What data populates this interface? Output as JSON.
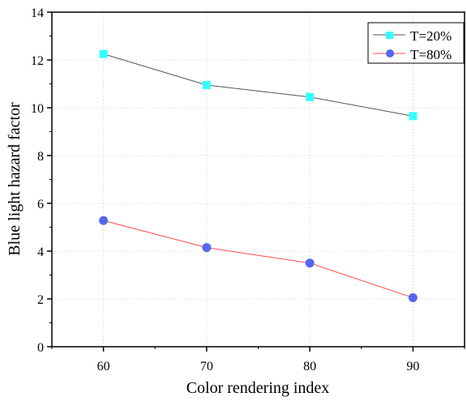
{
  "chart_data": {
    "type": "line",
    "title": "",
    "xlabel": "Color rendering index",
    "ylabel": "Blue light hazard factor",
    "x": [
      60,
      70,
      80,
      90
    ],
    "xticks": [
      "60",
      "70",
      "80",
      "90"
    ],
    "xlim": [
      55,
      95
    ],
    "yticks": [
      "0",
      "2",
      "4",
      "6",
      "8",
      "10",
      "12",
      "14"
    ],
    "ylim": [
      0,
      14
    ],
    "grid": true,
    "legend_position": "top-right",
    "series": [
      {
        "name": "T=20%",
        "values": [
          12.25,
          10.95,
          10.45,
          9.65
        ],
        "line_color": "#555555",
        "marker": "square",
        "marker_color": "#33ffff"
      },
      {
        "name": "T=80%",
        "values": [
          5.28,
          4.15,
          3.5,
          2.05
        ],
        "line_color": "#ff4a4a",
        "marker": "circle",
        "marker_color": "#5566ee"
      }
    ]
  }
}
